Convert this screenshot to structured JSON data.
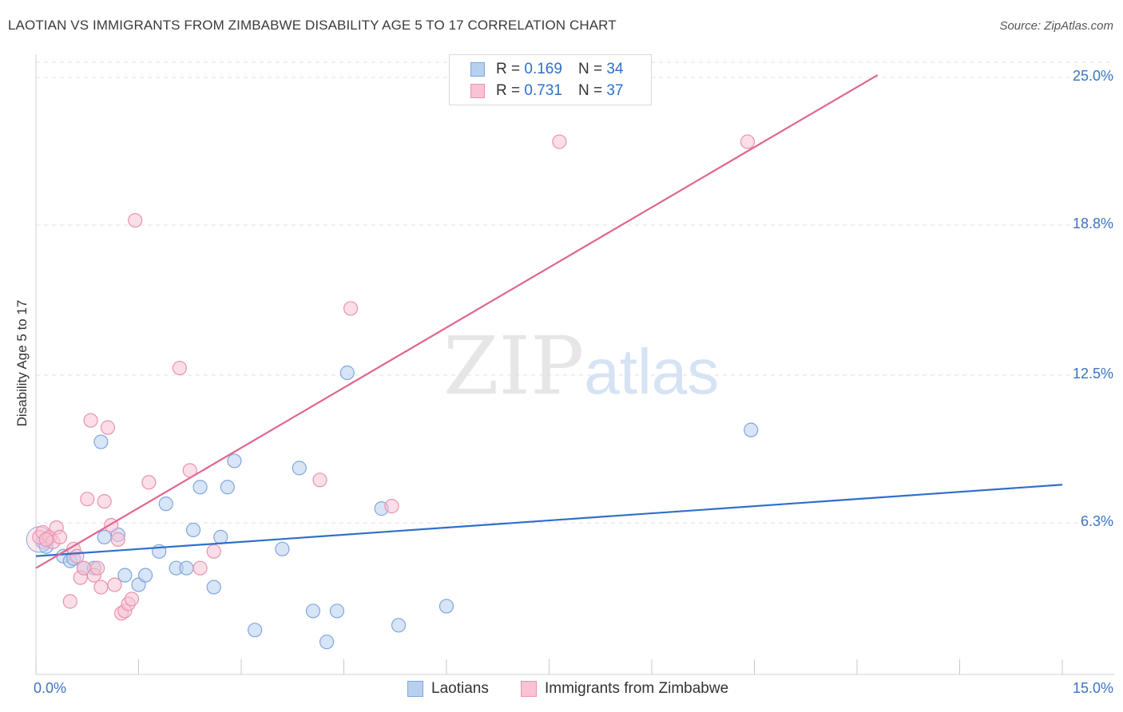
{
  "header": {
    "title": "LAOTIAN VS IMMIGRANTS FROM ZIMBABWE DISABILITY AGE 5 TO 17 CORRELATION CHART",
    "source": "Source: ZipAtlas.com"
  },
  "legend": {
    "series1": {
      "r_label": "R =",
      "r_value": "0.169",
      "n_label": "N =",
      "n_value": "34"
    },
    "series2": {
      "r_label": "R =",
      "r_value": "0.731",
      "n_label": "N =",
      "n_value": "37"
    }
  },
  "bottom_legend": {
    "s1": "Laotians",
    "s2": "Immigrants from Zimbabwe"
  },
  "watermark": {
    "zip": "ZIP",
    "atlas": "atlas"
  },
  "colors": {
    "blue_fill": "#b8d0f0",
    "blue_stroke": "#7ea6dc",
    "blue_line": "#2f6fca",
    "pink_fill": "#f8c3d3",
    "pink_stroke": "#e992b0",
    "pink_line": "#e06592",
    "tick_text": "#3b74c4",
    "grid": "#e0e0e0"
  },
  "chart_data": {
    "type": "scatter",
    "title": "LAOTIAN VS IMMIGRANTS FROM ZIMBABWE DISABILITY AGE 5 TO 17 CORRELATION CHART",
    "xlabel": "",
    "ylabel": "Disability Age 5 to 17",
    "xlim": [
      0,
      15
    ],
    "ylim": [
      0,
      25.6
    ],
    "x_tick_labels": [
      "0.0%",
      "15.0%"
    ],
    "y_ticks": [
      6.3,
      12.5,
      18.8,
      25.0
    ],
    "y_tick_labels": [
      "6.3%",
      "12.5%",
      "18.8%",
      "25.0%"
    ],
    "grid": "horizontal dashed",
    "series": [
      {
        "name": "Laotians",
        "r": 0.169,
        "n": 34,
        "trend": {
          "x": [
            0,
            15
          ],
          "y": [
            4.9,
            7.9
          ]
        },
        "points": [
          [
            0.1,
            5.5
          ],
          [
            0.15,
            5.3
          ],
          [
            0.4,
            4.9
          ],
          [
            0.5,
            4.7
          ],
          [
            0.55,
            4.8
          ],
          [
            0.7,
            4.4
          ],
          [
            0.85,
            4.4
          ],
          [
            0.95,
            9.7
          ],
          [
            1.0,
            5.7
          ],
          [
            1.2,
            5.8
          ],
          [
            1.3,
            4.1
          ],
          [
            1.5,
            3.7
          ],
          [
            1.6,
            4.1
          ],
          [
            1.8,
            5.1
          ],
          [
            1.9,
            7.1
          ],
          [
            2.05,
            4.4
          ],
          [
            2.2,
            4.4
          ],
          [
            2.3,
            6.0
          ],
          [
            2.4,
            7.8
          ],
          [
            2.6,
            3.6
          ],
          [
            2.7,
            5.7
          ],
          [
            2.8,
            7.8
          ],
          [
            2.9,
            8.9
          ],
          [
            3.2,
            1.8
          ],
          [
            3.6,
            5.2
          ],
          [
            3.85,
            8.6
          ],
          [
            4.05,
            2.6
          ],
          [
            4.25,
            1.3
          ],
          [
            4.4,
            2.6
          ],
          [
            4.55,
            12.6
          ],
          [
            5.05,
            6.9
          ],
          [
            5.3,
            2.0
          ],
          [
            6.0,
            2.8
          ],
          [
            10.45,
            10.2
          ]
        ]
      },
      {
        "name": "Immigrants from Zimbabwe",
        "r": 0.731,
        "n": 37,
        "trend": {
          "x": [
            0,
            12.3
          ],
          "y": [
            4.4,
            25.1
          ]
        },
        "points": [
          [
            0.05,
            5.7
          ],
          [
            0.1,
            5.9
          ],
          [
            0.2,
            5.7
          ],
          [
            0.25,
            5.5
          ],
          [
            0.3,
            6.1
          ],
          [
            0.35,
            5.7
          ],
          [
            0.5,
            3.0
          ],
          [
            0.55,
            5.2
          ],
          [
            0.6,
            4.9
          ],
          [
            0.65,
            4.0
          ],
          [
            0.7,
            4.4
          ],
          [
            0.75,
            7.3
          ],
          [
            0.8,
            10.6
          ],
          [
            0.85,
            4.1
          ],
          [
            0.9,
            4.4
          ],
          [
            0.95,
            3.6
          ],
          [
            1.0,
            7.2
          ],
          [
            1.05,
            10.3
          ],
          [
            1.1,
            6.2
          ],
          [
            1.15,
            3.7
          ],
          [
            1.2,
            5.6
          ],
          [
            1.25,
            2.5
          ],
          [
            1.3,
            2.6
          ],
          [
            1.35,
            2.9
          ],
          [
            1.4,
            3.1
          ],
          [
            1.45,
            19.0
          ],
          [
            1.65,
            8.0
          ],
          [
            2.1,
            12.8
          ],
          [
            2.25,
            8.5
          ],
          [
            2.4,
            4.4
          ],
          [
            2.6,
            5.1
          ],
          [
            4.15,
            8.1
          ],
          [
            4.6,
            15.3
          ],
          [
            5.2,
            7.0
          ],
          [
            7.65,
            22.3
          ],
          [
            10.4,
            22.3
          ],
          [
            0.15,
            5.6
          ]
        ]
      }
    ]
  }
}
